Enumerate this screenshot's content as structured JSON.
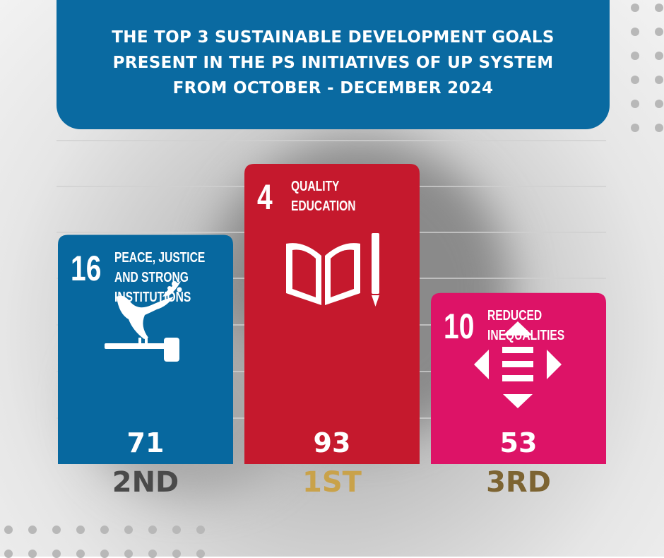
{
  "banner": {
    "title_lines": [
      "THE TOP 3 SUSTAINABLE DEVELOPMENT GOALS",
      "PRESENT IN THE PS INITIATIVES OF UP SYSTEM",
      "FROM OCTOBER - DECEMBER 2024"
    ]
  },
  "colors": {
    "banner": "#0a6aa1",
    "goal16": "#07689f",
    "goal4": "#c5192d",
    "goal10": "#dd1367",
    "rank_first": "#c9a24a",
    "rank_second": "#4a4a4a",
    "rank_third": "#7d6432"
  },
  "chart_data": {
    "type": "bar",
    "title": "THE TOP 3 SUSTAINABLE DEVELOPMENT GOALS PRESENT IN THE PS INITIATIVES OF UP SYSTEM FROM OCTOBER - DECEMBER 2024",
    "categories": [
      "PEACE, JUSTICE AND STRONG INSTITUTIONS",
      "QUALITY EDUCATION",
      "REDUCED INEQUALITIES"
    ],
    "values": [
      71,
      93,
      53
    ],
    "ylim": [
      0,
      100
    ],
    "grid": true,
    "bars": [
      {
        "goal_number": "16",
        "name_lines": [
          "PEACE, JUSTICE",
          "AND STRONG",
          "INSTITUTIONS"
        ],
        "value": 71,
        "value_label": "71",
        "rank": "2ND",
        "icon": "dove-gavel-icon"
      },
      {
        "goal_number": "4",
        "name_lines": [
          "QUALITY",
          "EDUCATION"
        ],
        "value": 93,
        "value_label": "93",
        "rank": "1ST",
        "icon": "book-pencil-icon"
      },
      {
        "goal_number": "10",
        "name_lines": [
          "REDUCED",
          "INEQUALITIES"
        ],
        "value": 53,
        "value_label": "53",
        "rank": "3RD",
        "icon": "equality-arrows-icon"
      }
    ]
  }
}
